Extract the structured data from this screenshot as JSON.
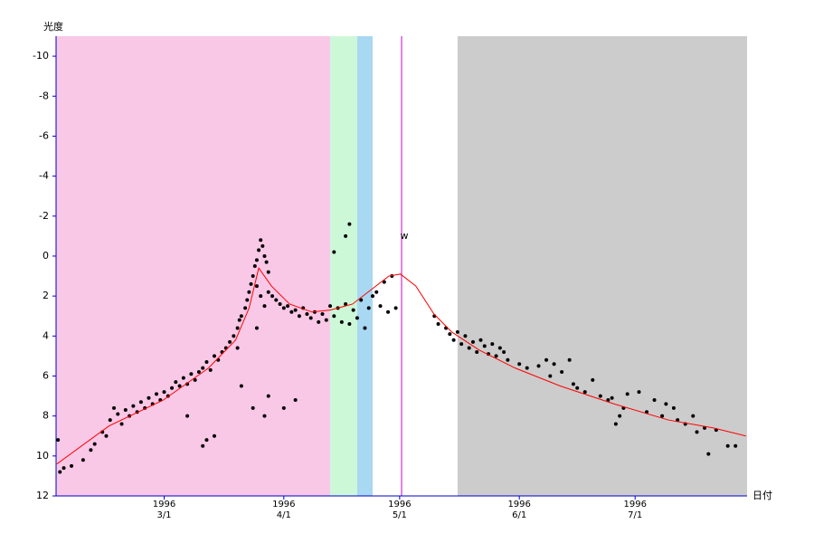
{
  "chart_data": {
    "type": "scatter",
    "y_label": "光度",
    "x_label": "日付",
    "xlim": [
      33,
      212
    ],
    "ylim": [
      12,
      -11
    ],
    "yticks": [
      -10,
      -8,
      -6,
      -4,
      -2,
      0,
      2,
      4,
      6,
      8,
      10,
      12
    ],
    "xticks": [
      {
        "value": 61,
        "label": "1996\n3/1"
      },
      {
        "value": 92,
        "label": "1996\n4/1"
      },
      {
        "value": 122,
        "label": "1996\n5/1"
      },
      {
        "value": 153,
        "label": "1996\n6/1"
      },
      {
        "value": 183,
        "label": "1996\n7/1"
      }
    ],
    "axis_color": "#0000cc",
    "spans": [
      {
        "x0": 33,
        "x1": 104,
        "color": "#f9c8e6"
      },
      {
        "x0": 104,
        "x1": 111,
        "color": "#ccf8d8"
      },
      {
        "x0": 111,
        "x1": 115,
        "color": "#a8d8f2"
      },
      {
        "x0": 137,
        "x1": 212,
        "color": "#cccccc"
      }
    ],
    "marker_line": {
      "x": 122.5,
      "color": "#cc00cc"
    },
    "annotation": {
      "x": 122.5,
      "y": -1,
      "text": "w"
    },
    "points": {
      "color": "#000000",
      "x": [
        33.5,
        34,
        35,
        37,
        40,
        42,
        43,
        45,
        46,
        47,
        48,
        49,
        50,
        51,
        52,
        53,
        54,
        55,
        56,
        57,
        58,
        59,
        60,
        61,
        62,
        63,
        64,
        65,
        66,
        67,
        68,
        69,
        70,
        71,
        72,
        73,
        74,
        75,
        76,
        77,
        78,
        79,
        80,
        80.5,
        81,
        82,
        82.5,
        83,
        83.5,
        84,
        84.5,
        85,
        85.5,
        86,
        86.5,
        87,
        87.5,
        88,
        85,
        86,
        87,
        88,
        89,
        90,
        91,
        92,
        93,
        94,
        95,
        96,
        97,
        98,
        99,
        100,
        101,
        102,
        103,
        104,
        105,
        106,
        107,
        108,
        109,
        110,
        111,
        112,
        113,
        114,
        115,
        116,
        117,
        118,
        119,
        120,
        121,
        72,
        67,
        87,
        88,
        92,
        95,
        84,
        74,
        71,
        105,
        109,
        108,
        81,
        85,
        80,
        131,
        132,
        134,
        135,
        136,
        137,
        138,
        139,
        140,
        141,
        142,
        143,
        144,
        145,
        146,
        147,
        148,
        149,
        150,
        153,
        155,
        158,
        160,
        161,
        162,
        164,
        166,
        167,
        168,
        170,
        172,
        174,
        176,
        177,
        178,
        179,
        180,
        181,
        184,
        186,
        188,
        190,
        191,
        193,
        194,
        196,
        198,
        199,
        201,
        202,
        204,
        207,
        209
      ],
      "y": [
        9.2,
        10.8,
        10.6,
        10.5,
        10.2,
        9.7,
        9.4,
        8.8,
        9.0,
        8.2,
        7.6,
        7.9,
        8.4,
        7.7,
        8.0,
        7.5,
        7.8,
        7.3,
        7.6,
        7.1,
        7.4,
        6.9,
        7.2,
        6.8,
        7.0,
        6.6,
        6.3,
        6.5,
        6.1,
        6.4,
        5.9,
        6.2,
        5.8,
        5.6,
        5.3,
        5.7,
        5.0,
        5.2,
        4.8,
        4.6,
        4.3,
        4.0,
        3.6,
        3.2,
        3.0,
        2.6,
        2.2,
        1.8,
        1.4,
        1.0,
        0.5,
        0.2,
        -0.3,
        -0.8,
        -0.5,
        0.0,
        0.3,
        0.8,
        1.5,
        2.0,
        2.5,
        1.8,
        2.0,
        2.2,
        2.4,
        2.6,
        2.5,
        2.8,
        2.7,
        3.0,
        2.6,
        2.9,
        3.1,
        2.8,
        3.3,
        2.9,
        3.2,
        2.5,
        3.0,
        2.6,
        3.3,
        2.4,
        3.4,
        2.7,
        3.1,
        2.2,
        3.6,
        2.6,
        2.0,
        1.8,
        2.5,
        1.3,
        2.8,
        1.0,
        2.6,
        9.2,
        8.0,
        8.0,
        7.0,
        7.6,
        7.2,
        7.6,
        9.0,
        9.5,
        -0.2,
        -1.6,
        -1.0,
        6.5,
        3.6,
        4.6,
        3.0,
        3.4,
        3.6,
        3.9,
        4.2,
        3.8,
        4.4,
        4.0,
        4.6,
        4.3,
        4.8,
        4.2,
        4.5,
        4.9,
        4.4,
        5.0,
        4.6,
        4.8,
        5.2,
        5.4,
        5.6,
        5.5,
        5.2,
        6.0,
        5.4,
        5.8,
        5.2,
        6.4,
        6.6,
        6.8,
        6.2,
        7.0,
        7.2,
        7.1,
        8.4,
        8.0,
        7.6,
        6.9,
        6.8,
        7.8,
        7.2,
        8.0,
        7.4,
        7.6,
        8.2,
        8.4,
        8.0,
        8.8,
        8.6,
        9.9,
        8.7,
        9.5,
        9.5
      ]
    },
    "curve": {
      "color": "#ff0000",
      "x": [
        33.2,
        46.7,
        60.8,
        72.5,
        79.5,
        83,
        85.5,
        88.8,
        93.5,
        99.3,
        104,
        109.8,
        114.5,
        119.2,
        122.2,
        126.2,
        130.9,
        135.5,
        142.6,
        151.9,
        163.6,
        177.6,
        191.6,
        203.3,
        211.7
      ],
      "y": [
        10.4,
        8.5,
        7.2,
        5.6,
        4.2,
        2.6,
        0.6,
        1.5,
        2.4,
        2.8,
        2.7,
        2.4,
        1.7,
        1.0,
        0.9,
        1.5,
        2.9,
        3.8,
        4.7,
        5.6,
        6.5,
        7.4,
        8.2,
        8.6,
        9.0
      ]
    }
  }
}
